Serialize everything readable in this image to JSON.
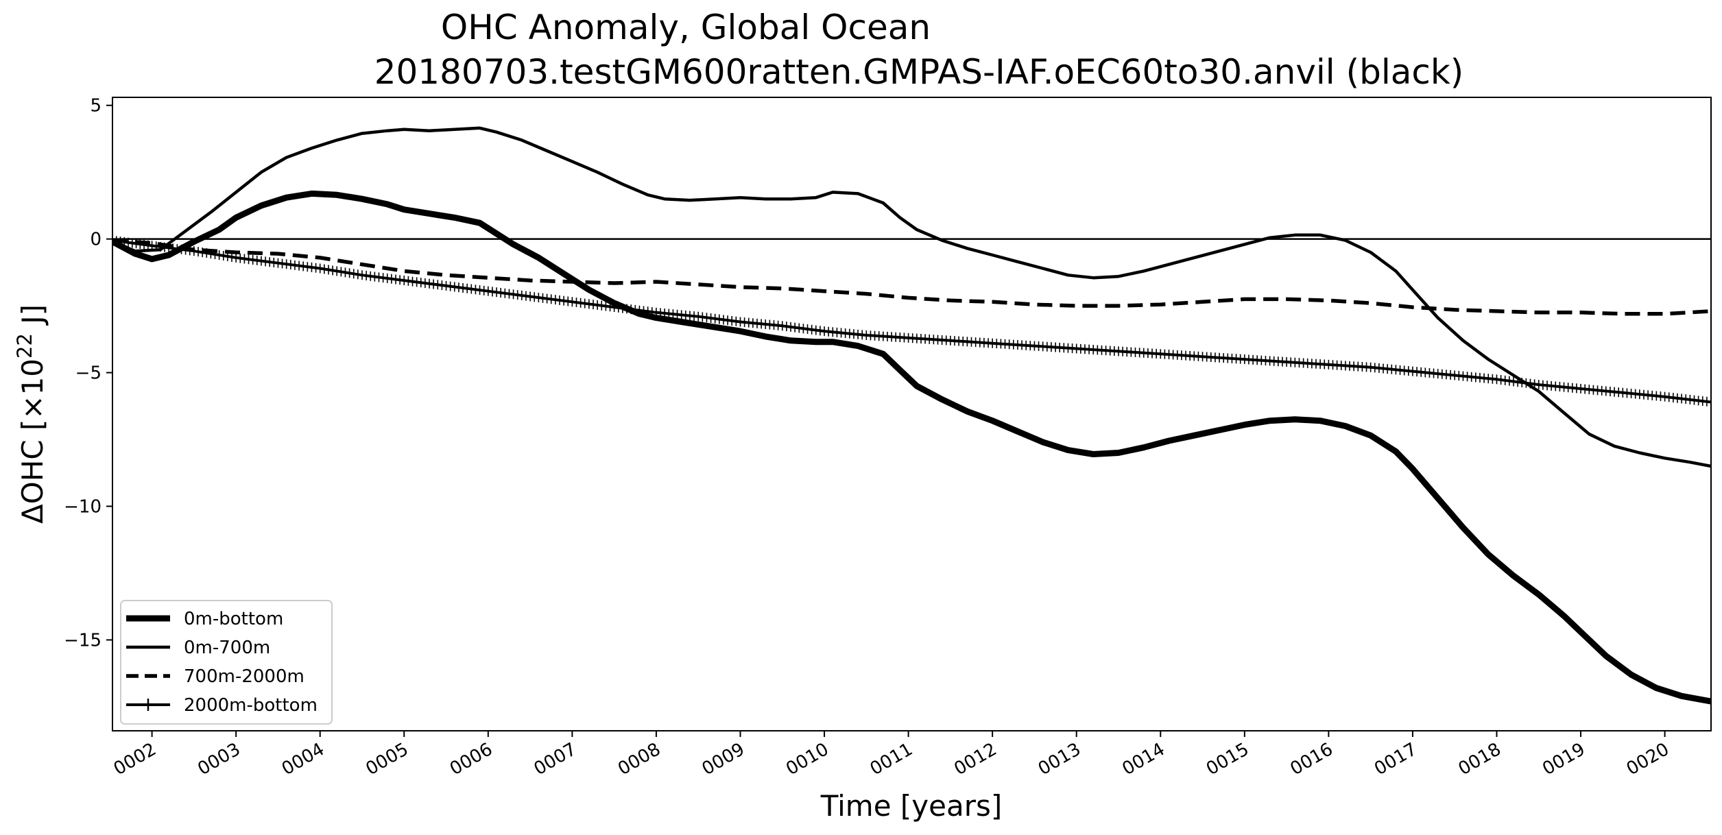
{
  "chart_data": {
    "type": "line",
    "title": "OHC Anomaly, Global Ocean",
    "subtitle": "20180703.testGM600ratten.GMPAS-IAF.oEC60to30.anvil (black)",
    "xlabel": "Time [years]",
    "ylabel_prefix": "ΔOHC [×10",
    "ylabel_exp": "22",
    "ylabel_suffix": " J]",
    "xlim": [
      1.53,
      20.55
    ],
    "ylim": [
      -18.4,
      5.3
    ],
    "grid": false,
    "legend_position": "lower-left",
    "reference_line_y": 0,
    "x_ticks": [
      {
        "value": 2,
        "label": "0002"
      },
      {
        "value": 3,
        "label": "0003"
      },
      {
        "value": 4,
        "label": "0004"
      },
      {
        "value": 5,
        "label": "0005"
      },
      {
        "value": 6,
        "label": "0006"
      },
      {
        "value": 7,
        "label": "0007"
      },
      {
        "value": 8,
        "label": "0008"
      },
      {
        "value": 9,
        "label": "0009"
      },
      {
        "value": 10,
        "label": "0010"
      },
      {
        "value": 11,
        "label": "0011"
      },
      {
        "value": 12,
        "label": "0012"
      },
      {
        "value": 13,
        "label": "0013"
      },
      {
        "value": 14,
        "label": "0014"
      },
      {
        "value": 15,
        "label": "0015"
      },
      {
        "value": 16,
        "label": "0016"
      },
      {
        "value": 17,
        "label": "0017"
      },
      {
        "value": 18,
        "label": "0018"
      },
      {
        "value": 19,
        "label": "0019"
      },
      {
        "value": 20,
        "label": "0020"
      }
    ],
    "y_ticks": [
      {
        "value": 5,
        "label": "5"
      },
      {
        "value": 0,
        "label": "0"
      },
      {
        "value": -5,
        "label": "−5"
      },
      {
        "value": -10,
        "label": "−10"
      },
      {
        "value": -15,
        "label": "−15"
      }
    ],
    "series": [
      {
        "name": "0m-bottom",
        "style": "solid",
        "width": 9,
        "marker": "none",
        "color": "#000000",
        "x": [
          1.53,
          1.8,
          2.0,
          2.2,
          2.5,
          2.8,
          3.0,
          3.3,
          3.6,
          3.9,
          4.2,
          4.5,
          4.8,
          5.0,
          5.3,
          5.6,
          5.9,
          6.1,
          6.3,
          6.6,
          6.9,
          7.2,
          7.5,
          7.8,
          8.0,
          8.3,
          8.6,
          9.0,
          9.3,
          9.6,
          9.9,
          10.1,
          10.4,
          10.7,
          10.9,
          11.1,
          11.4,
          11.7,
          12.0,
          12.3,
          12.6,
          12.9,
          13.2,
          13.5,
          13.8,
          14.1,
          14.4,
          14.7,
          15.0,
          15.3,
          15.6,
          15.9,
          16.2,
          16.5,
          16.8,
          17.0,
          17.3,
          17.6,
          17.9,
          18.2,
          18.5,
          18.8,
          19.0,
          19.3,
          19.6,
          19.9,
          20.2,
          20.55
        ],
        "y": [
          -0.1,
          -0.55,
          -0.75,
          -0.6,
          -0.1,
          0.35,
          0.8,
          1.25,
          1.55,
          1.7,
          1.65,
          1.5,
          1.3,
          1.1,
          0.95,
          0.8,
          0.6,
          0.2,
          -0.2,
          -0.7,
          -1.3,
          -1.9,
          -2.4,
          -2.8,
          -2.95,
          -3.1,
          -3.25,
          -3.45,
          -3.65,
          -3.8,
          -3.85,
          -3.85,
          -4.0,
          -4.3,
          -4.9,
          -5.5,
          -6.0,
          -6.45,
          -6.8,
          -7.2,
          -7.6,
          -7.9,
          -8.05,
          -8.0,
          -7.8,
          -7.55,
          -7.35,
          -7.15,
          -6.95,
          -6.8,
          -6.75,
          -6.8,
          -7.0,
          -7.35,
          -7.95,
          -8.6,
          -9.7,
          -10.8,
          -11.8,
          -12.6,
          -13.3,
          -14.1,
          -14.7,
          -15.6,
          -16.3,
          -16.8,
          -17.1,
          -17.3
        ]
      },
      {
        "name": "0m-700m",
        "style": "solid",
        "width": 4.5,
        "marker": "none",
        "color": "#000000",
        "x": [
          1.53,
          1.8,
          2.1,
          2.4,
          2.7,
          3.0,
          3.3,
          3.6,
          3.9,
          4.2,
          4.5,
          4.8,
          5.0,
          5.3,
          5.6,
          5.9,
          6.1,
          6.4,
          6.7,
          7.0,
          7.3,
          7.6,
          7.9,
          8.1,
          8.4,
          8.7,
          9.0,
          9.3,
          9.6,
          9.9,
          10.1,
          10.4,
          10.7,
          10.9,
          11.1,
          11.4,
          11.7,
          12.0,
          12.3,
          12.6,
          12.9,
          13.2,
          13.5,
          13.8,
          14.1,
          14.4,
          14.7,
          15.0,
          15.3,
          15.6,
          15.9,
          16.2,
          16.5,
          16.8,
          17.0,
          17.3,
          17.6,
          17.9,
          18.2,
          18.5,
          18.8,
          19.1,
          19.4,
          19.7,
          20.0,
          20.3,
          20.55
        ],
        "y": [
          -0.1,
          -0.45,
          -0.4,
          0.3,
          1.0,
          1.75,
          2.5,
          3.05,
          3.4,
          3.7,
          3.95,
          4.05,
          4.1,
          4.05,
          4.1,
          4.15,
          4.0,
          3.7,
          3.3,
          2.9,
          2.5,
          2.05,
          1.65,
          1.5,
          1.45,
          1.5,
          1.55,
          1.5,
          1.5,
          1.55,
          1.75,
          1.7,
          1.35,
          0.8,
          0.35,
          -0.05,
          -0.35,
          -0.6,
          -0.85,
          -1.1,
          -1.35,
          -1.45,
          -1.4,
          -1.2,
          -0.95,
          -0.7,
          -0.45,
          -0.2,
          0.05,
          0.15,
          0.15,
          -0.05,
          -0.5,
          -1.2,
          -1.9,
          -2.95,
          -3.8,
          -4.5,
          -5.1,
          -5.7,
          -6.5,
          -7.3,
          -7.75,
          -8.0,
          -8.2,
          -8.35,
          -8.5
        ]
      },
      {
        "name": "700m-2000m",
        "style": "dashed",
        "width": 5.5,
        "marker": "none",
        "color": "#000000",
        "x": [
          1.53,
          2.0,
          2.5,
          3.0,
          3.5,
          4.0,
          4.5,
          5.0,
          5.5,
          6.0,
          6.5,
          7.0,
          7.5,
          8.0,
          8.5,
          9.0,
          9.5,
          10.0,
          10.5,
          11.0,
          11.5,
          12.0,
          12.5,
          13.0,
          13.5,
          14.0,
          14.5,
          15.0,
          15.5,
          16.0,
          16.5,
          17.0,
          17.5,
          18.0,
          18.5,
          19.0,
          19.5,
          20.0,
          20.55
        ],
        "y": [
          -0.05,
          -0.15,
          -0.4,
          -0.5,
          -0.55,
          -0.7,
          -0.95,
          -1.2,
          -1.35,
          -1.45,
          -1.55,
          -1.6,
          -1.65,
          -1.6,
          -1.7,
          -1.8,
          -1.85,
          -1.95,
          -2.05,
          -2.2,
          -2.3,
          -2.35,
          -2.45,
          -2.5,
          -2.5,
          -2.45,
          -2.35,
          -2.25,
          -2.25,
          -2.3,
          -2.4,
          -2.55,
          -2.65,
          -2.7,
          -2.75,
          -2.75,
          -2.8,
          -2.8,
          -2.7
        ]
      },
      {
        "name": "2000m-bottom",
        "style": "solid",
        "width": 4,
        "marker": "plus",
        "color": "#000000",
        "x": [
          1.53,
          2.0,
          2.5,
          3.0,
          3.5,
          4.0,
          4.5,
          5.0,
          5.5,
          6.0,
          6.5,
          7.0,
          7.5,
          8.0,
          8.5,
          9.0,
          9.5,
          10.0,
          10.5,
          11.0,
          11.5,
          12.0,
          12.5,
          13.0,
          13.5,
          14.0,
          14.5,
          15.0,
          15.5,
          16.0,
          16.5,
          17.0,
          17.5,
          18.0,
          18.5,
          19.0,
          19.5,
          20.0,
          20.55
        ],
        "y": [
          -0.05,
          -0.25,
          -0.45,
          -0.7,
          -0.9,
          -1.1,
          -1.35,
          -1.55,
          -1.75,
          -1.95,
          -2.15,
          -2.35,
          -2.55,
          -2.75,
          -2.9,
          -3.1,
          -3.25,
          -3.45,
          -3.6,
          -3.7,
          -3.8,
          -3.9,
          -4.0,
          -4.1,
          -4.2,
          -4.3,
          -4.4,
          -4.5,
          -4.6,
          -4.7,
          -4.8,
          -4.95,
          -5.1,
          -5.25,
          -5.45,
          -5.6,
          -5.75,
          -5.9,
          -6.1
        ]
      }
    ]
  }
}
